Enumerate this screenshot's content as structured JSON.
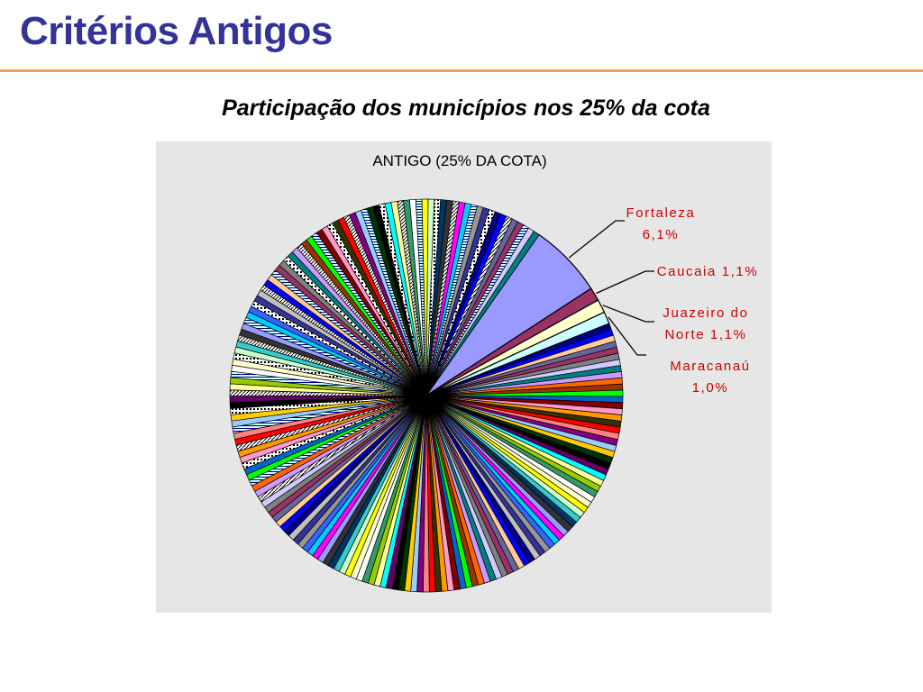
{
  "slide": {
    "title": "Critérios Antigos",
    "subtitle": "Participação dos municípios nos 25% da cota"
  },
  "colors": {
    "title": "#33339a",
    "rule": "#f0a050",
    "panel": "#e6e6e6",
    "callout": "#cc0000"
  },
  "chart_data": {
    "type": "pie",
    "title": "ANTIGO (25% DA COTA)",
    "labeled_slices": [
      {
        "label": "Fortaleza",
        "value": 6.1,
        "display_lines": [
          "Fortaleza",
          "6,1%"
        ],
        "color": "#9999ff"
      },
      {
        "label": "Caucaia",
        "value": 1.1,
        "display_lines": [
          "Caucaia 1,1%"
        ],
        "color": "#993366"
      },
      {
        "label": "Juazeiro do Norte",
        "value": 1.1,
        "display_lines": [
          "Juazeiro do",
          "Norte 1,1%"
        ],
        "color": "#ffffcc"
      },
      {
        "label": "Maracanaú",
        "value": 1.0,
        "display_lines": [
          "Maracanaú",
          "1,0%"
        ],
        "color": "#ccffff"
      }
    ],
    "other_slices_count": 180,
    "other_total": 90.7,
    "palette": [
      "#000080",
      "#ff00ff",
      "#ffff00",
      "#00ffff",
      "#800080",
      "#800000",
      "#008080",
      "#0000ff",
      "#00ccff",
      "#ccffcc",
      "#ffff99",
      "#99ccff",
      "#ff99cc",
      "#cc99ff",
      "#ffcc99",
      "#3366ff",
      "#33cccc",
      "#99cc00",
      "#ffcc00",
      "#ff9900",
      "#ff6600",
      "#666699",
      "#969696",
      "#003366",
      "#339966",
      "#003300",
      "#333300",
      "#993300",
      "#993366",
      "#333399",
      "#333333",
      "#ffffff",
      "#000000",
      "#ff0000",
      "#00ff00",
      "#808080",
      "#c0c0c0",
      "#9999ff",
      "#ffffcc",
      "#660066",
      "#ff8080",
      "#0066cc",
      "#ccccff"
    ]
  }
}
